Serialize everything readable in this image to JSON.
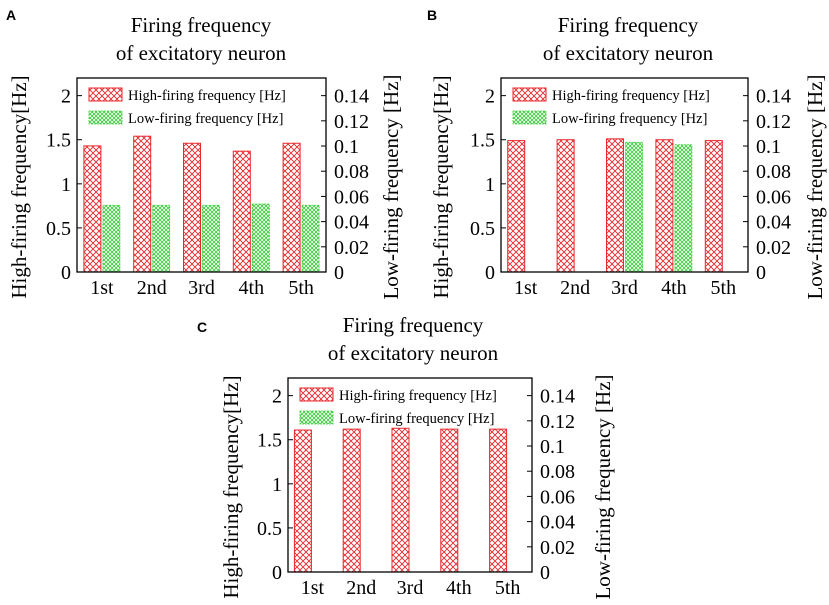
{
  "colors": {
    "high": "#e8262b",
    "low": "#33cc33"
  },
  "chart_data": [
    {
      "panel": "A",
      "type": "bar",
      "title": [
        "Firing frequency",
        "of excitatory neuron"
      ],
      "categories": [
        "1st",
        "2nd",
        "3rd",
        "4th",
        "5th"
      ],
      "ylabel": "High-firing frequency[Hz]",
      "y2label": "Low-firing frequency [Hz]",
      "ylim": [
        0,
        2.2
      ],
      "y2lim": [
        0,
        0.154
      ],
      "yticks": [
        "0",
        "0.5",
        "1",
        "1.5",
        "2"
      ],
      "y2ticks": [
        "0",
        "0.02",
        "0.04",
        "0.06",
        "0.08",
        "0.1",
        "0.12",
        "0.14"
      ],
      "legend_position": "top",
      "series": [
        {
          "name": "High-firing frequency [Hz]",
          "axis": "left",
          "values": [
            1.43,
            1.54,
            1.46,
            1.37,
            1.46
          ]
        },
        {
          "name": "Low-firing frequency [Hz]",
          "axis": "right",
          "values": [
            0.053,
            0.053,
            0.053,
            0.054,
            0.053
          ]
        }
      ]
    },
    {
      "panel": "B",
      "type": "bar",
      "title": [
        "Firing frequency",
        "of excitatory neuron"
      ],
      "categories": [
        "1st",
        "2nd",
        "3rd",
        "4th",
        "5th"
      ],
      "ylabel": "High-firing frequency[Hz]",
      "y2label": "Low-firing frequency [Hz]",
      "ylim": [
        0,
        2.2
      ],
      "y2lim": [
        0,
        0.154
      ],
      "yticks": [
        "0",
        "0.5",
        "1",
        "1.5",
        "2"
      ],
      "y2ticks": [
        "0",
        "0.02",
        "0.04",
        "0.06",
        "0.08",
        "0.1",
        "0.12",
        "0.14"
      ],
      "legend_position": "top",
      "series": [
        {
          "name": "High-firing frequency [Hz]",
          "axis": "left",
          "values": [
            1.49,
            1.5,
            1.51,
            1.5,
            1.49
          ]
        },
        {
          "name": "Low-firing frequency [Hz]",
          "axis": "right",
          "values": [
            0,
            0,
            0.103,
            0.101,
            0
          ]
        }
      ]
    },
    {
      "panel": "C",
      "type": "bar",
      "title": [
        "Firing frequency",
        "of excitatory neuron"
      ],
      "categories": [
        "1st",
        "2nd",
        "3rd",
        "4th",
        "5th"
      ],
      "ylabel": "High-firing frequency[Hz]",
      "y2label": "Low-firing frequency [Hz]",
      "ylim": [
        0,
        2.2
      ],
      "y2lim": [
        0,
        0.154
      ],
      "yticks": [
        "0",
        "0.5",
        "1",
        "1.5",
        "2"
      ],
      "y2ticks": [
        "0",
        "0.02",
        "0.04",
        "0.06",
        "0.08",
        "0.1",
        "0.12",
        "0.14"
      ],
      "legend_position": "top",
      "series": [
        {
          "name": "High-firing frequency [Hz]",
          "axis": "left",
          "values": [
            1.61,
            1.62,
            1.63,
            1.62,
            1.62
          ]
        },
        {
          "name": "Low-firing frequency [Hz]",
          "axis": "right",
          "values": [
            0,
            0,
            0,
            0,
            0
          ]
        }
      ]
    }
  ]
}
